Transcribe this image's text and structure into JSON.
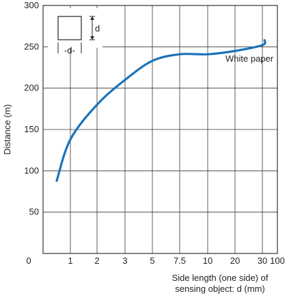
{
  "chart_data": {
    "type": "line",
    "ylabel": "Distance (m)",
    "xlabel_line1": "Side length (one side) of",
    "xlabel_line2": "sensing object: d (mm)",
    "x_tick_labels": [
      "0",
      "1",
      "2",
      "3",
      "5",
      "7.5",
      "10",
      "20",
      "30",
      "100"
    ],
    "y_tick_labels": [
      "50",
      "100",
      "150",
      "200",
      "250",
      "300"
    ],
    "ylim": [
      0,
      300
    ],
    "grid": true,
    "series": [
      {
        "name": "White paper",
        "color": "#1a72b8",
        "x": [
          "0.5",
          "1",
          "2",
          "3",
          "5",
          "7.5",
          "10",
          "20",
          "30",
          "40"
        ],
        "y": [
          88,
          138,
          180,
          210,
          233,
          241,
          241,
          245,
          252,
          258
        ]
      }
    ],
    "inset": {
      "dimension_label_top": "d",
      "dimension_label_bottom": "-d-"
    }
  }
}
